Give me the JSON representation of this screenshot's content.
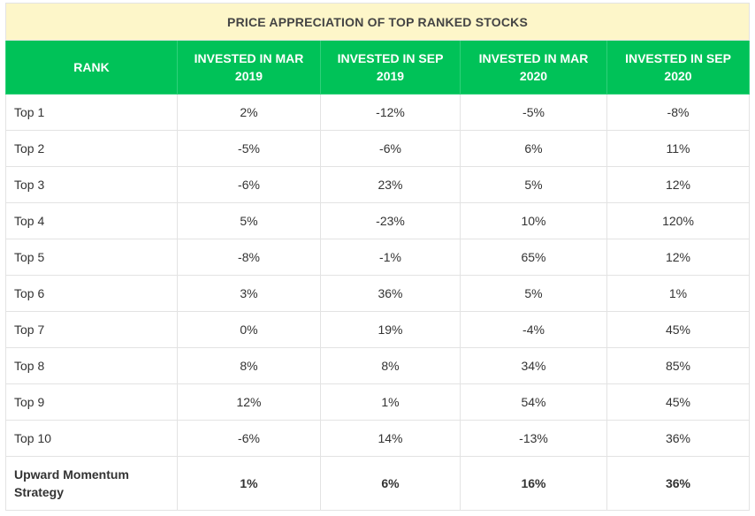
{
  "chart_data": {
    "type": "table",
    "title": "PRICE APPRECIATION OF TOP RANKED STOCKS",
    "columns": [
      "RANK",
      "INVESTED IN MAR 2019",
      "INVESTED IN SEP 2019",
      "INVESTED IN MAR 2020",
      "INVESTED IN SEP 2020"
    ],
    "rows": [
      {
        "rank": "Top 1",
        "values": [
          "2%",
          "-12%",
          "-5%",
          "-8%"
        ]
      },
      {
        "rank": "Top 2",
        "values": [
          "-5%",
          "-6%",
          "6%",
          "11%"
        ]
      },
      {
        "rank": "Top 3",
        "values": [
          "-6%",
          "23%",
          "5%",
          "12%"
        ]
      },
      {
        "rank": "Top 4",
        "values": [
          "5%",
          "-23%",
          "10%",
          "120%"
        ]
      },
      {
        "rank": "Top 5",
        "values": [
          "-8%",
          "-1%",
          "65%",
          "12%"
        ]
      },
      {
        "rank": "Top 6",
        "values": [
          "3%",
          "36%",
          "5%",
          "1%"
        ]
      },
      {
        "rank": "Top 7",
        "values": [
          "0%",
          "19%",
          "-4%",
          "45%"
        ]
      },
      {
        "rank": "Top 8",
        "values": [
          "8%",
          "8%",
          "34%",
          "85%"
        ]
      },
      {
        "rank": "Top 9",
        "values": [
          "12%",
          "1%",
          "54%",
          "45%"
        ]
      },
      {
        "rank": "Top 10",
        "values": [
          "-6%",
          "14%",
          "-13%",
          "36%"
        ]
      },
      {
        "rank": "Upward Momentum Strategy",
        "values": [
          "1%",
          "6%",
          "16%",
          "36%"
        ]
      }
    ]
  },
  "colors": {
    "title_bg": "#fdf6c9",
    "header_bg": "#00c258",
    "header_text": "#ffffff",
    "grid": "#e3e3e3"
  }
}
